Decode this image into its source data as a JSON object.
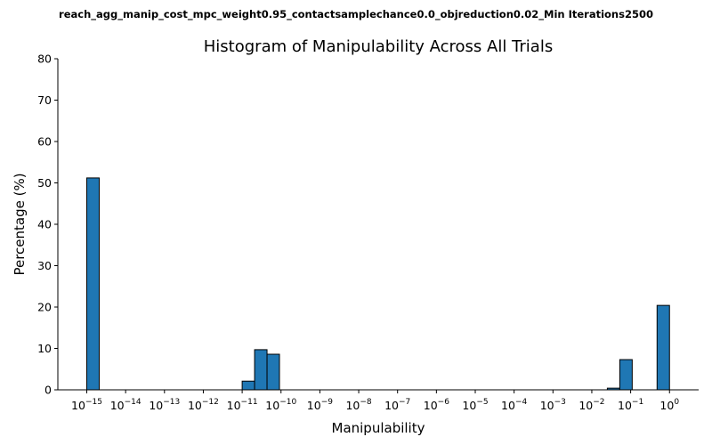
{
  "suptitle": "reach_agg_manip_cost_mpc_weight0.95_contactsamplechance0.0_objreduction0.02_Min Iterations2500",
  "chart_data": {
    "type": "bar",
    "title": "Histogram of Manipulability Across All Trials",
    "xlabel": "Manipulability",
    "ylabel": "Percentage (%)",
    "xscale": "log",
    "xlim": [
      1e-16,
      1.0
    ],
    "ylim": [
      0,
      80
    ],
    "yticks": [
      0,
      10,
      20,
      30,
      40,
      50,
      60,
      70,
      80
    ],
    "xticks": [
      {
        "exp": -15,
        "label": "10",
        "sup": "−15"
      },
      {
        "exp": -14,
        "label": "10",
        "sup": "−14"
      },
      {
        "exp": -13,
        "label": "10",
        "sup": "−13"
      },
      {
        "exp": -12,
        "label": "10",
        "sup": "−12"
      },
      {
        "exp": -11,
        "label": "10",
        "sup": "−11"
      },
      {
        "exp": -10,
        "label": "10",
        "sup": "−10"
      },
      {
        "exp": -9,
        "label": "10",
        "sup": "−9"
      },
      {
        "exp": -8,
        "label": "10",
        "sup": "−8"
      },
      {
        "exp": -7,
        "label": "10",
        "sup": "−7"
      },
      {
        "exp": -6,
        "label": "10",
        "sup": "−6"
      },
      {
        "exp": -5,
        "label": "10",
        "sup": "−5"
      },
      {
        "exp": -4,
        "label": "10",
        "sup": "−4"
      },
      {
        "exp": -3,
        "label": "10",
        "sup": "−3"
      },
      {
        "exp": -2,
        "label": "10",
        "sup": "−2"
      },
      {
        "exp": -1,
        "label": "10",
        "sup": "−1"
      },
      {
        "exp": 0,
        "label": "10",
        "sup": "0"
      }
    ],
    "bars": [
      {
        "exp_from": -15.0,
        "exp_to": -14.68,
        "value": 51.2
      },
      {
        "exp_from": -11.0,
        "exp_to": -10.68,
        "value": 2.1
      },
      {
        "exp_from": -10.68,
        "exp_to": -10.36,
        "value": 9.7
      },
      {
        "exp_from": -10.36,
        "exp_to": -10.04,
        "value": 8.6
      },
      {
        "exp_from": -1.6,
        "exp_to": -1.28,
        "value": 0.4
      },
      {
        "exp_from": -1.28,
        "exp_to": -0.96,
        "value": 7.3
      },
      {
        "exp_from": -0.32,
        "exp_to": 0.0,
        "value": 20.4
      }
    ]
  }
}
